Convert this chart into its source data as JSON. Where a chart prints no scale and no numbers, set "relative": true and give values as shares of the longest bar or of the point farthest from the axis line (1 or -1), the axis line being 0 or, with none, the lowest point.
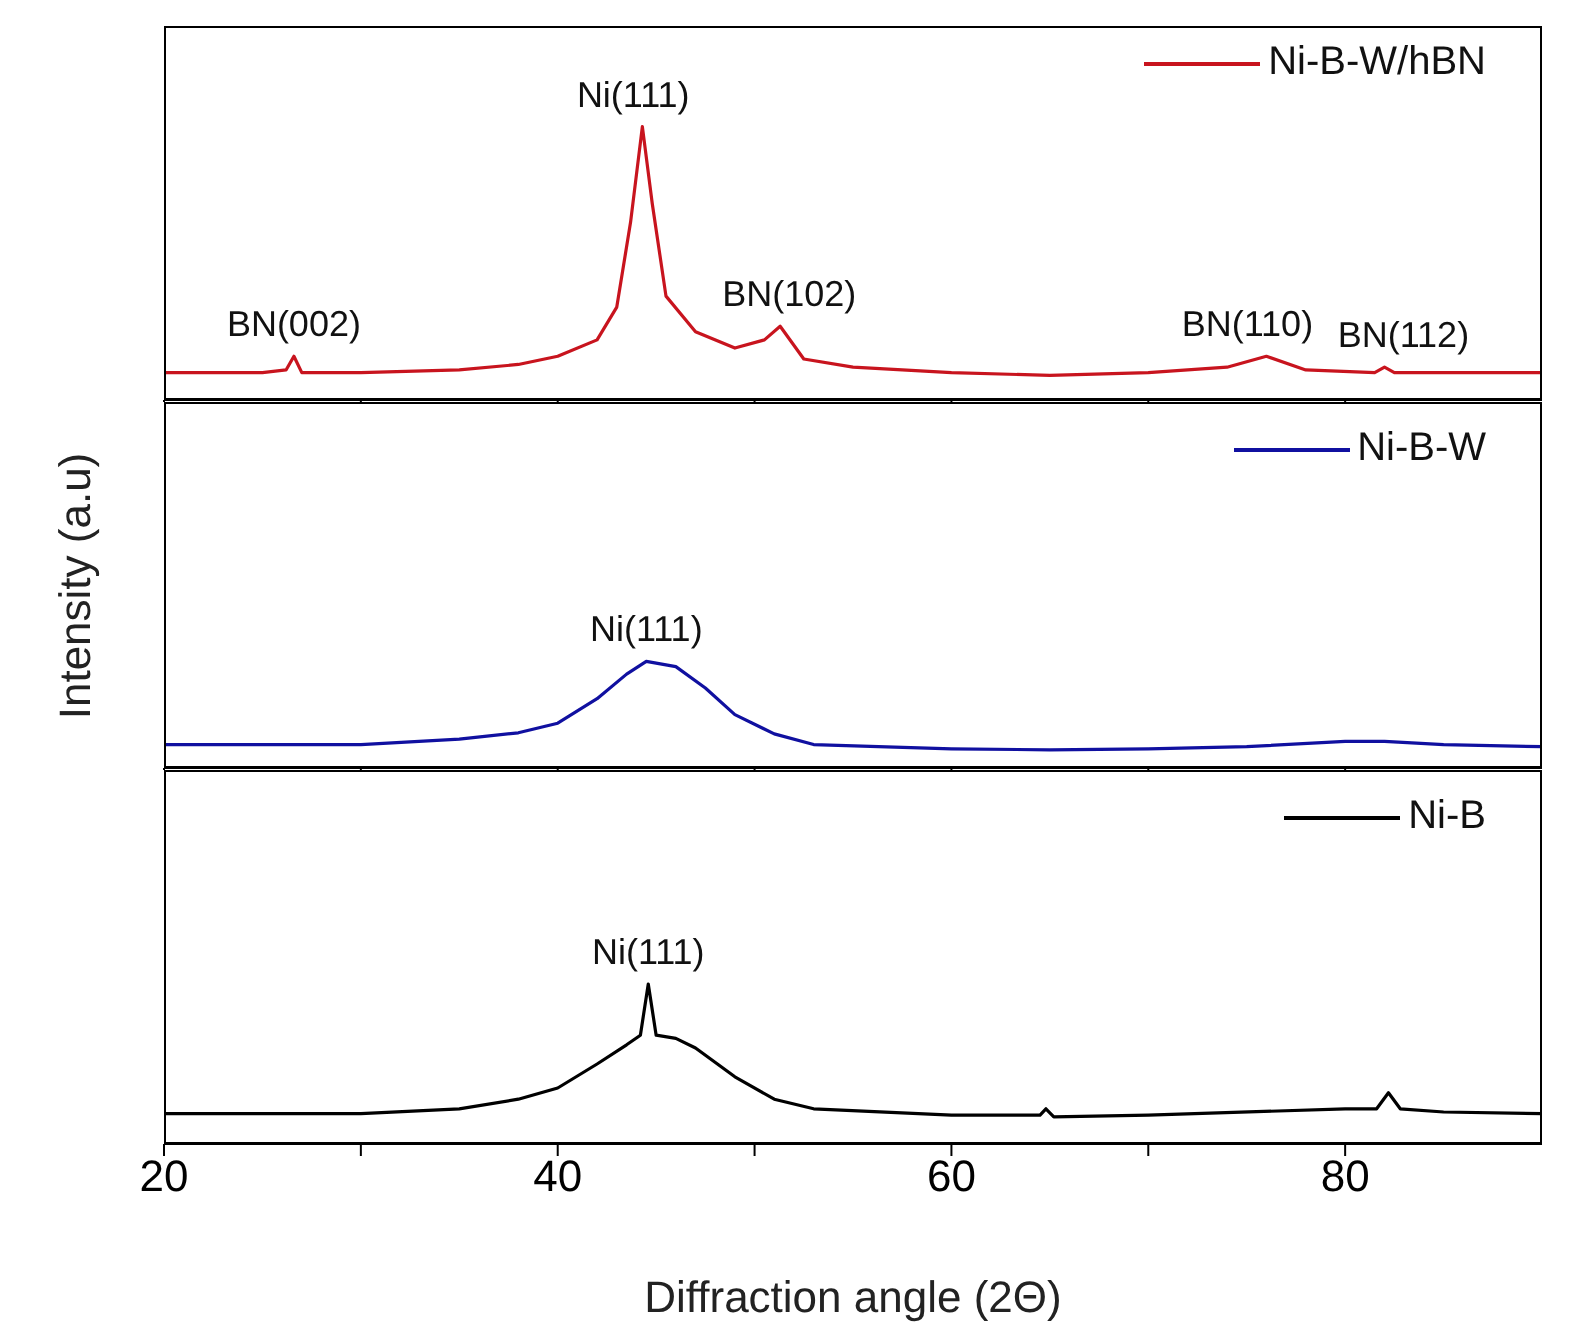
{
  "chart_data": [
    {
      "type": "line",
      "relative": true,
      "tick_labels": false,
      "legend": "top right",
      "xlim": [
        20,
        90
      ],
      "xticks": [
        20,
        {
          "value": 30,
          "label": null
        },
        40,
        {
          "value": 50,
          "label": null
        },
        60,
        {
          "value": 70,
          "label": null
        },
        80
      ],
      "x": [
        20,
        23,
        25,
        26.2,
        26.6,
        27,
        30,
        35,
        38,
        40,
        42,
        43,
        43.7,
        44.3,
        44.8,
        45.5,
        47,
        49,
        50.5,
        51.3,
        52.5,
        55,
        60,
        65,
        70,
        74,
        76,
        78,
        81.5,
        82,
        82.5,
        85,
        90
      ],
      "series": [
        {
          "name": "Ni-B-W/hBN",
          "color": "#c8141e",
          "values": [
            0.1,
            0.1,
            0.1,
            0.11,
            0.16,
            0.1,
            0.1,
            0.11,
            0.13,
            0.16,
            0.22,
            0.34,
            0.65,
            1.0,
            0.72,
            0.38,
            0.25,
            0.19,
            0.22,
            0.27,
            0.15,
            0.12,
            0.1,
            0.09,
            0.1,
            0.12,
            0.16,
            0.11,
            0.1,
            0.12,
            0.1,
            0.1,
            0.1
          ]
        }
      ],
      "annotations": [
        {
          "text": "BN(002)",
          "x": 26.6,
          "y": 0.16
        },
        {
          "text": "Ni(111)",
          "x": 44.3,
          "y": 1.0
        },
        {
          "text": "BN(102)",
          "x": 51.3,
          "y": 0.27
        },
        {
          "text": "BN(110)",
          "x": 76,
          "y": 0.16
        },
        {
          "text": "BN(112)",
          "x": 82,
          "y": 0.12
        }
      ]
    },
    {
      "type": "line",
      "relative": true,
      "tick_labels": false,
      "legend": "top right",
      "ylabel": "Intensity (a.u)",
      "xlim": [
        20,
        90
      ],
      "xticks": [
        20,
        {
          "value": 30,
          "label": null
        },
        40,
        {
          "value": 50,
          "label": null
        },
        60,
        {
          "value": 70,
          "label": null
        },
        80
      ],
      "x": [
        20,
        25,
        30,
        35,
        38,
        40,
        42,
        43.5,
        44.5,
        46,
        47.5,
        49,
        51,
        53,
        60,
        65,
        70,
        75,
        80,
        82,
        85,
        90
      ],
      "series": [
        {
          "name": "Ni-B-W",
          "color": "#1010a0",
          "values": [
            0.22,
            0.22,
            0.22,
            0.27,
            0.33,
            0.42,
            0.65,
            0.88,
            1.0,
            0.95,
            0.75,
            0.5,
            0.32,
            0.22,
            0.18,
            0.17,
            0.18,
            0.2,
            0.25,
            0.25,
            0.22,
            0.2
          ]
        }
      ],
      "annotations": [
        {
          "text": "Ni(111)",
          "x": 44.5,
          "y": 1.0
        }
      ]
    },
    {
      "type": "line",
      "relative": true,
      "tick_labels": "x",
      "legend": "top right",
      "xlabel": "Diffraction angle (2Θ)",
      "xlim": [
        20,
        90
      ],
      "xticks": [
        20,
        {
          "value": 30,
          "label": null
        },
        40,
        {
          "value": 50,
          "label": null
        },
        60,
        {
          "value": 70,
          "label": null
        },
        80
      ],
      "x": [
        20,
        30,
        35,
        38,
        40,
        42,
        43.5,
        44.2,
        44.6,
        45,
        46,
        47,
        49,
        51,
        53,
        60,
        64.5,
        64.8,
        65.2,
        70,
        80,
        81.6,
        82.2,
        82.8,
        85,
        90
      ],
      "series": [
        {
          "name": "Ni-B",
          "color": "#000000",
          "values": [
            0.19,
            0.19,
            0.22,
            0.28,
            0.35,
            0.5,
            0.62,
            0.68,
            1.0,
            0.68,
            0.66,
            0.6,
            0.42,
            0.28,
            0.22,
            0.18,
            0.18,
            0.22,
            0.17,
            0.18,
            0.22,
            0.22,
            0.32,
            0.22,
            0.2,
            0.19
          ]
        }
      ],
      "annotations": [
        {
          "text": "Ni(111)",
          "x": 44.6,
          "y": 1.0
        }
      ]
    }
  ]
}
